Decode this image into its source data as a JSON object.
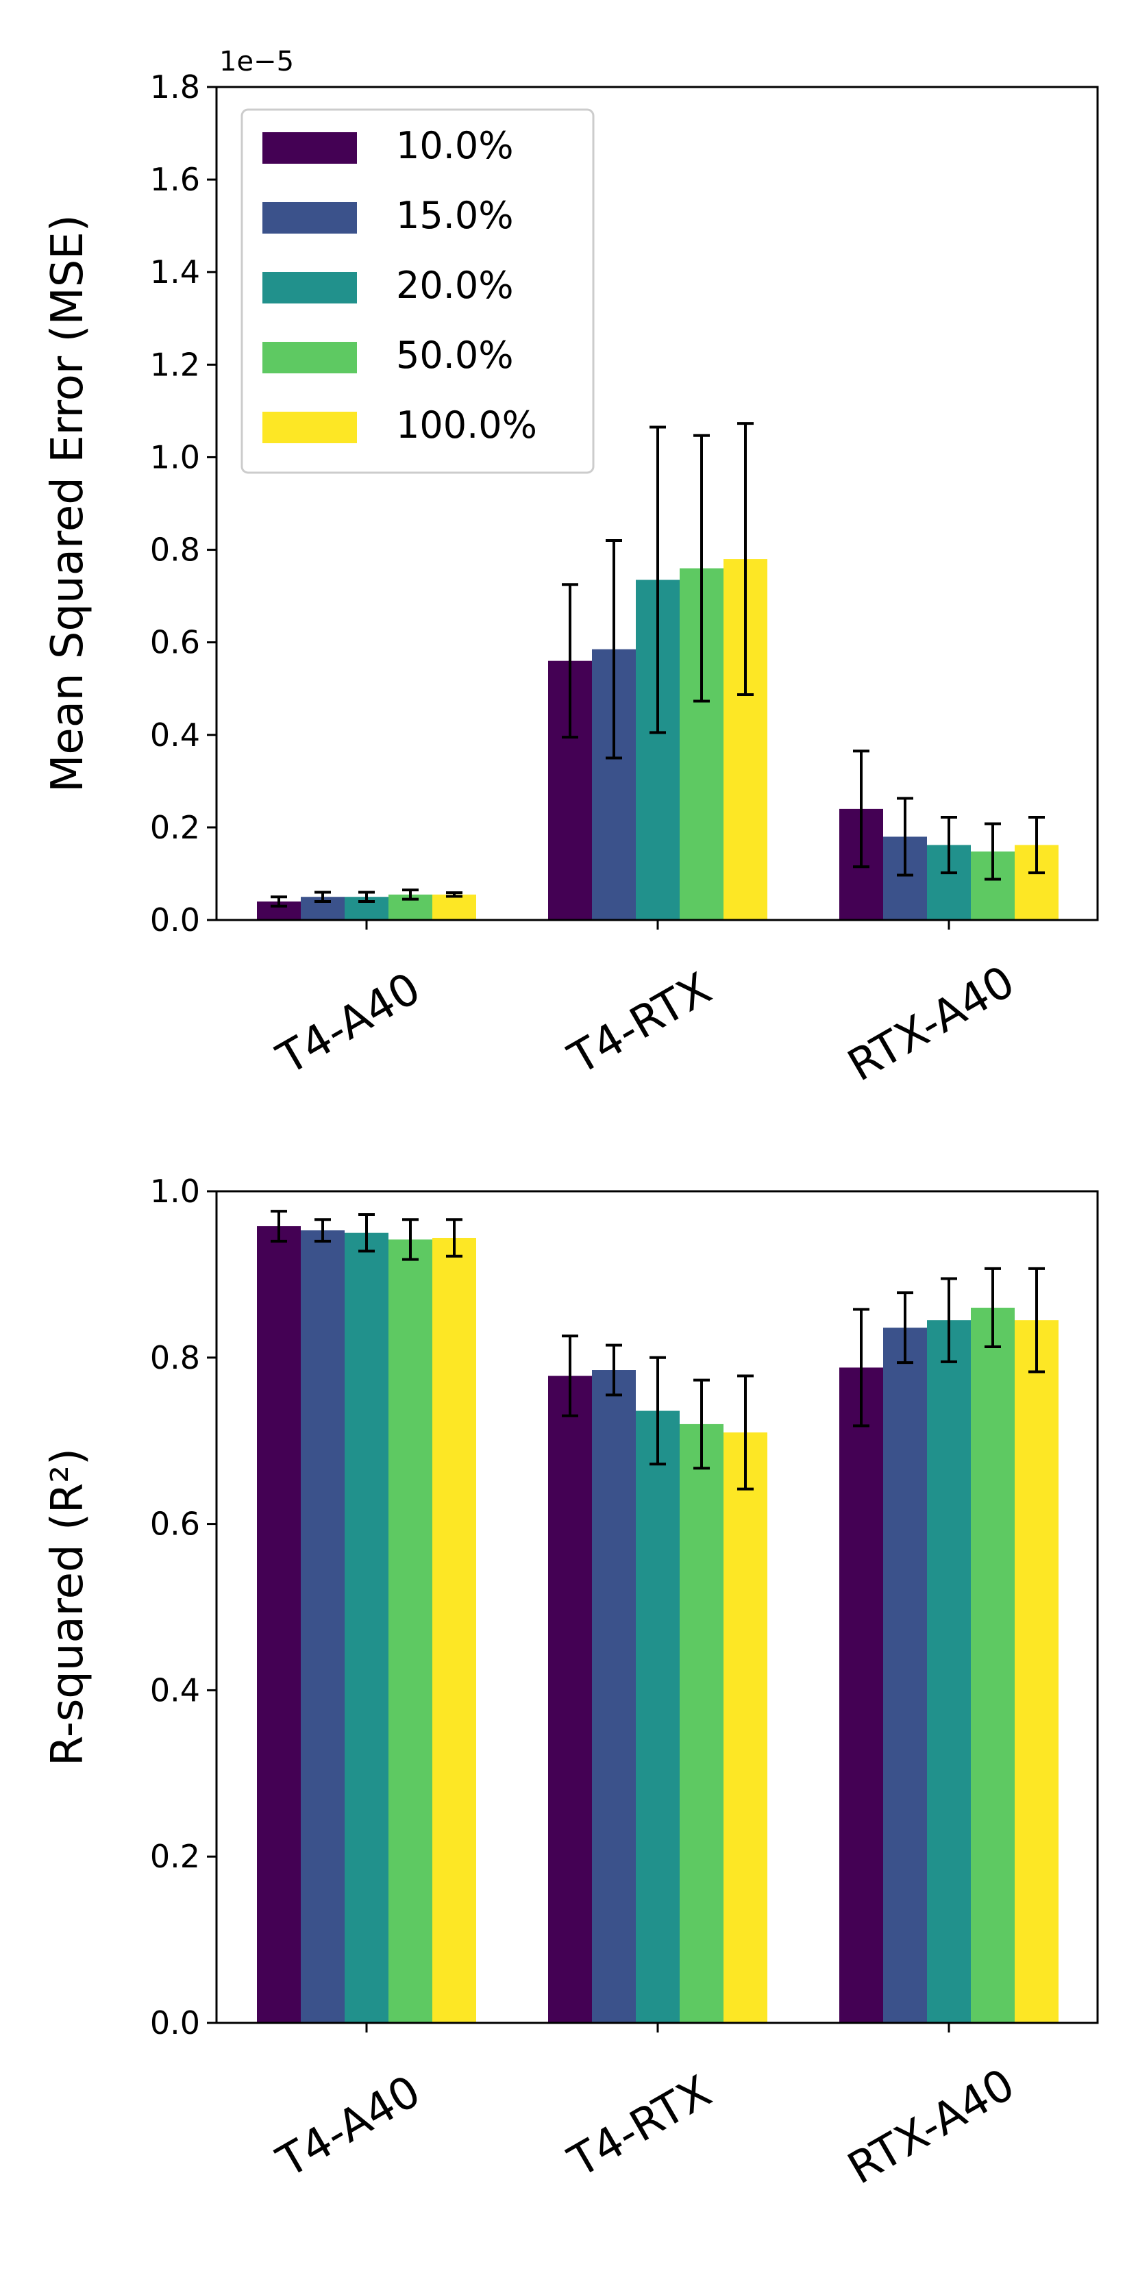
{
  "chart_data": [
    {
      "type": "bar",
      "categories": [
        "T4-A40",
        "T4-RTX",
        "RTX-A40"
      ],
      "ylabel": "Mean Squared Error (MSE)",
      "xlabel": "",
      "ylim": [
        0,
        1.8
      ],
      "yticks": [
        "0.0",
        "0.2",
        "0.4",
        "0.6",
        "0.8",
        "1.0",
        "1.2",
        "1.4",
        "1.6",
        "1.8"
      ],
      "y_offset_label": "1e−5",
      "legend_position": "top-left",
      "series": [
        {
          "name": "10.0%",
          "color": "#440154",
          "values": [
            0.04,
            0.56,
            0.24
          ],
          "errors": [
            0.01,
            0.165,
            0.125
          ]
        },
        {
          "name": "15.0%",
          "color": "#3b528b",
          "values": [
            0.05,
            0.585,
            0.18
          ],
          "errors": [
            0.01,
            0.235,
            0.083
          ]
        },
        {
          "name": "20.0%",
          "color": "#21918c",
          "values": [
            0.05,
            0.735,
            0.162
          ],
          "errors": [
            0.01,
            0.33,
            0.06
          ]
        },
        {
          "name": "50.0%",
          "color": "#5ec962",
          "values": [
            0.055,
            0.76,
            0.148
          ],
          "errors": [
            0.01,
            0.287,
            0.06
          ]
        },
        {
          "name": "100.0%",
          "color": "#fde725",
          "values": [
            0.055,
            0.78,
            0.162
          ],
          "errors": [
            0.004,
            0.293,
            0.06
          ]
        }
      ]
    },
    {
      "type": "bar",
      "categories": [
        "T4-A40",
        "T4-RTX",
        "RTX-A40"
      ],
      "ylabel": "R-squared (R²)",
      "xlabel": "",
      "ylim": [
        0,
        1.0
      ],
      "yticks": [
        "0.0",
        "0.2",
        "0.4",
        "0.6",
        "0.8",
        "1.0"
      ],
      "series": [
        {
          "name": "10.0%",
          "color": "#440154",
          "values": [
            0.958,
            0.778,
            0.788
          ],
          "errors": [
            0.018,
            0.048,
            0.07
          ]
        },
        {
          "name": "15.0%",
          "color": "#3b528b",
          "values": [
            0.953,
            0.785,
            0.836
          ],
          "errors": [
            0.013,
            0.03,
            0.042
          ]
        },
        {
          "name": "20.0%",
          "color": "#21918c",
          "values": [
            0.95,
            0.736,
            0.845
          ],
          "errors": [
            0.022,
            0.064,
            0.05
          ]
        },
        {
          "name": "50.0%",
          "color": "#5ec962",
          "values": [
            0.942,
            0.72,
            0.86
          ],
          "errors": [
            0.024,
            0.053,
            0.047
          ]
        },
        {
          "name": "100.0%",
          "color": "#fde725",
          "values": [
            0.944,
            0.71,
            0.845
          ],
          "errors": [
            0.022,
            0.068,
            0.062
          ]
        }
      ]
    }
  ]
}
